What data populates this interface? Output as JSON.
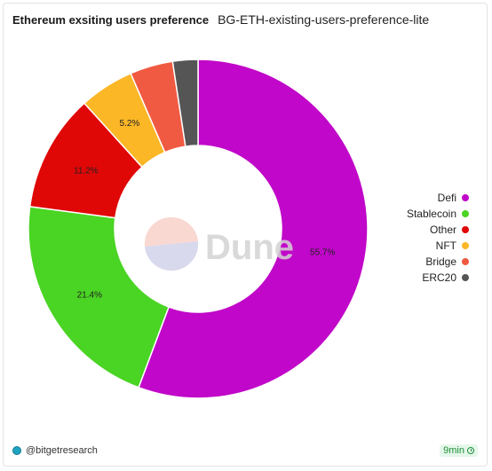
{
  "header": {
    "title": "Ethereum exsiting users preference",
    "subtitle": "BG-ETH-existing-users-preference-lite"
  },
  "watermark": {
    "text": "Dune"
  },
  "chart_data": {
    "type": "pie",
    "donut": true,
    "title": "Ethereum exsiting users preference",
    "legend_position": "right",
    "slices": [
      {
        "label": "Defi",
        "value": 55.7,
        "color": "#c107c9",
        "data_label": "55.7%"
      },
      {
        "label": "Stablecoin",
        "value": 21.4,
        "color": "#4ad424",
        "data_label": "21.4%"
      },
      {
        "label": "Other",
        "value": 11.2,
        "color": "#e00707",
        "data_label": "11.2%"
      },
      {
        "label": "NFT",
        "value": 5.2,
        "color": "#fbb726",
        "data_label": "5.2%"
      },
      {
        "label": "Bridge",
        "value": 4.1,
        "color": "#f15a42",
        "data_label": ""
      },
      {
        "label": "ERC20",
        "value": 2.4,
        "color": "#555555",
        "data_label": ""
      }
    ]
  },
  "footer": {
    "owner": "@bitgetresearch",
    "age": "9min"
  }
}
